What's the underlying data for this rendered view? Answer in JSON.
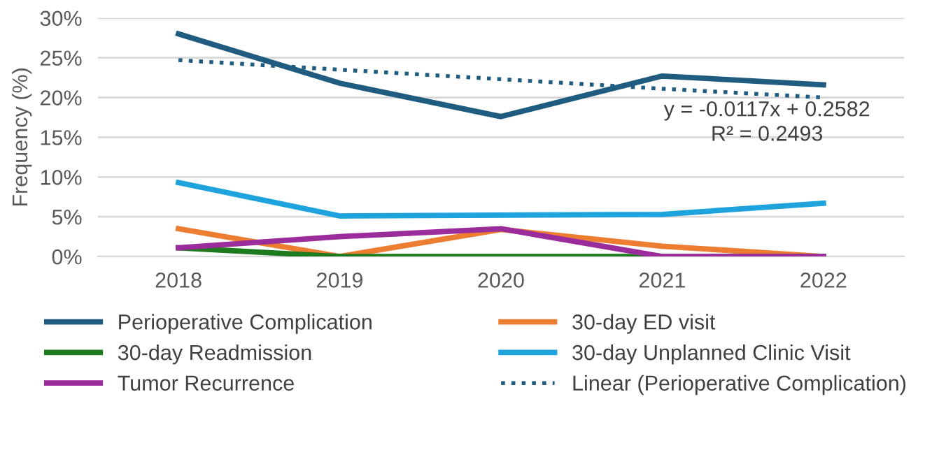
{
  "chart_data": {
    "type": "line",
    "ylabel": "Frequency (%)",
    "categories": [
      "2018",
      "2019",
      "2020",
      "2021",
      "2022"
    ],
    "series": [
      {
        "name": "Perioperative Complication",
        "color": "#1f5c7f",
        "values": [
          28.0,
          21.8,
          17.6,
          22.7,
          21.6
        ]
      },
      {
        "name": "30-day ED visit",
        "color": "#ed7d31",
        "values": [
          3.5,
          0,
          3.4,
          1.3,
          0
        ]
      },
      {
        "name": "30-day Readmission",
        "color": "#1e7a1e",
        "values": [
          1.1,
          0,
          0,
          0,
          0
        ]
      },
      {
        "name": "30-day Unplanned Clinic Visit",
        "color": "#1fa3dd",
        "values": [
          9.3,
          5.1,
          5.2,
          5.3,
          6.7
        ]
      },
      {
        "name": "Tumor Recurrence",
        "color": "#9b2c9b",
        "values": [
          1.1,
          2.5,
          3.5,
          0,
          0
        ]
      },
      {
        "name": "Linear (Perioperative Complication)",
        "color": "#1f5c7f",
        "values": [
          24.7,
          23.5,
          22.3,
          21.1,
          20.0
        ],
        "line_style": "dotted"
      }
    ],
    "annotations": [
      "y = -0.0117x + 0.2582\nR² = 0.2493"
    ],
    "ylim": [
      0,
      30
    ],
    "yticks": [
      {
        "value": 0,
        "label": "0%"
      },
      {
        "value": 5,
        "label": "5%"
      },
      {
        "value": 10,
        "label": "10%"
      },
      {
        "value": 15,
        "label": "15%"
      },
      {
        "value": 20,
        "label": "20%"
      },
      {
        "value": 25,
        "label": "25%"
      },
      {
        "value": 30,
        "label": "30%"
      }
    ],
    "grid": "y",
    "legend": "bottom",
    "marker": "none",
    "line_style": "solid"
  }
}
